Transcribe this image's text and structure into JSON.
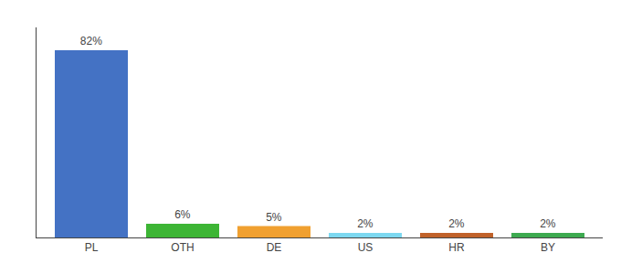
{
  "chart_data": {
    "type": "bar",
    "categories": [
      "PL",
      "OTH",
      "DE",
      "US",
      "HR",
      "BY"
    ],
    "values": [
      82,
      6,
      5,
      2,
      2,
      2
    ],
    "value_labels": [
      "82%",
      "6%",
      "5%",
      "2%",
      "2%",
      "2%"
    ],
    "colors": [
      "#4472c4",
      "#3db535",
      "#f0a030",
      "#7dd8f0",
      "#c0622a",
      "#3daa50"
    ],
    "ylim": [
      0,
      92
    ],
    "data_labels": true,
    "tick_labels": "x",
    "grid": false
  }
}
